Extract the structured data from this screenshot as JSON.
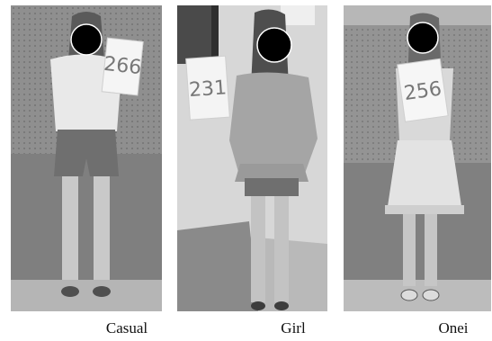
{
  "figure": {
    "panels": [
      {
        "caption": "Casual",
        "sign_number": "266"
      },
      {
        "caption": "Girl",
        "sign_number": "231"
      },
      {
        "caption": "Onei",
        "sign_number": "256"
      }
    ],
    "face_mask_color": "#000000",
    "palette": {
      "wall": "#9a9a9a",
      "floor": "#b8b8b8"
    }
  }
}
